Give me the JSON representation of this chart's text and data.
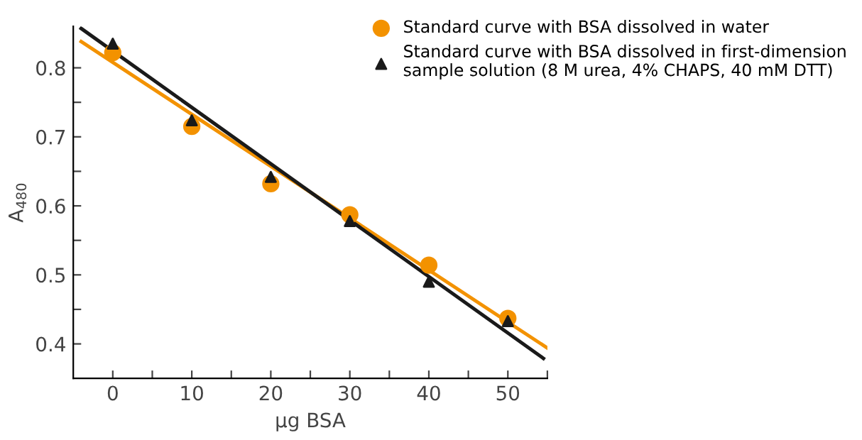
{
  "chart_data": {
    "type": "scatter",
    "xlabel": "µg BSA",
    "ylabel": "A$_{480}$",
    "xlim": [
      -5,
      55
    ],
    "ylim": [
      0.35,
      0.86
    ],
    "xticks": [
      0,
      {
        "value": 5,
        "label": null
      },
      10,
      {
        "value": 15,
        "label": null
      },
      20,
      {
        "value": 25,
        "label": null
      },
      30,
      {
        "value": 35,
        "label": null
      },
      40,
      {
        "value": 45,
        "label": null
      },
      50,
      {
        "value": 55,
        "label": null
      }
    ],
    "yticks": [
      0.4,
      {
        "value": 0.45,
        "label": null
      },
      0.5,
      {
        "value": 0.55,
        "label": null
      },
      0.6,
      {
        "value": 0.65,
        "label": null
      },
      0.7,
      {
        "value": 0.75,
        "label": null
      },
      0.8
    ],
    "grid": false,
    "legend": "top right",
    "series": [
      {
        "name": "Standard curve with BSA dissolved in water",
        "marker": "circle",
        "color": "#f39200",
        "x": [
          0,
          10,
          20,
          30,
          40,
          50
        ],
        "values": [
          0.822,
          0.715,
          0.632,
          0.587,
          0.514,
          0.437
        ]
      },
      {
        "name": "Standard curve with BSA dissolved in first-dimension sample solution (8 M urea, 4% CHAPS, 40 mM DTT)",
        "marker": "triangle",
        "color": "#1a1a1a",
        "x": [
          0,
          10,
          20,
          30,
          40,
          50
        ],
        "values": [
          0.835,
          0.724,
          0.642,
          0.578,
          0.49,
          0.433
        ]
      },
      {
        "type": "line",
        "marker": "none",
        "line_style": "solid",
        "color": "#f39200",
        "x": [
          -4,
          55
        ],
        "values": [
          0.838,
          0.394
        ]
      },
      {
        "type": "line",
        "marker": "none",
        "line_style": "solid",
        "color": "#1a1a1a",
        "x": [
          -4,
          54.5
        ],
        "values": [
          0.857,
          0.379
        ]
      }
    ]
  }
}
